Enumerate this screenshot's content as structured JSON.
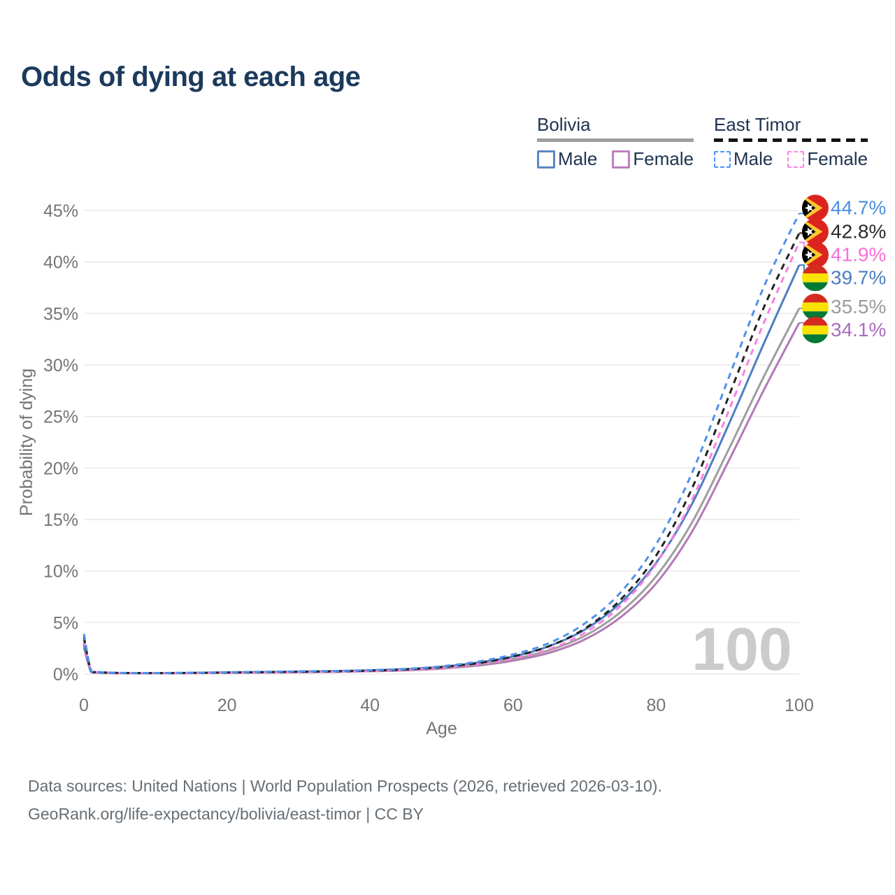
{
  "title": "Odds of dying at each age",
  "watermark": "100",
  "legend": {
    "groups": [
      {
        "label": "Bolivia",
        "line_style": "solid",
        "line_color": "#9e9e9e",
        "items": [
          {
            "label": "Male",
            "color": "#5b87c5",
            "dashed": false
          },
          {
            "label": "Female",
            "color": "#bf7fbf",
            "dashed": false
          }
        ]
      },
      {
        "label": "East Timor",
        "line_style": "dashed",
        "line_color": "#141414",
        "items": [
          {
            "label": "Male",
            "color": "#4d94ff",
            "dashed": true
          },
          {
            "label": "Female",
            "color": "#ff85e8",
            "dashed": true
          }
        ]
      }
    ]
  },
  "footer": {
    "line1": "Data sources: United Nations | World Population Prospects (2026, retrieved 2026-03-10).",
    "line2": "GeoRank.org/life-expectancy/bolivia/east-timor | CC BY"
  },
  "chart_data": {
    "type": "line",
    "title": "Odds of dying at each age",
    "xlabel": "Age",
    "ylabel": "Probability of dying",
    "xlim": [
      0,
      100
    ],
    "ylim": [
      0,
      45
    ],
    "x_ticks": [
      0,
      20,
      40,
      60,
      80,
      100
    ],
    "y_ticks": [
      0,
      5,
      10,
      15,
      20,
      25,
      30,
      35,
      40,
      45
    ],
    "y_tick_suffix": "%",
    "grid": "horizontal",
    "legend_position": "top-right",
    "x": [
      0,
      1,
      2,
      5,
      10,
      15,
      20,
      25,
      30,
      35,
      40,
      45,
      50,
      55,
      60,
      65,
      70,
      75,
      80,
      85,
      90,
      95,
      100
    ],
    "series": [
      {
        "name": "East Timor Male",
        "country": "East Timor",
        "sex": "Male",
        "color": "#4e92ea",
        "dashed": true,
        "end_label": "44.7%",
        "label_color": "#4a8fe0",
        "flag": "east-timor",
        "values": [
          3.9,
          0.35,
          0.2,
          0.12,
          0.1,
          0.13,
          0.18,
          0.22,
          0.26,
          0.3,
          0.38,
          0.5,
          0.75,
          1.2,
          1.9,
          3.0,
          4.9,
          7.9,
          12.6,
          19.5,
          28.5,
          37.5,
          44.7
        ]
      },
      {
        "name": "East Timor Both sexes",
        "country": "East Timor",
        "sex": "Both",
        "color": "#222222",
        "dashed": true,
        "end_label": "42.8%",
        "label_color": "#2a2a2a",
        "flag": "east-timor",
        "values": [
          3.6,
          0.33,
          0.19,
          0.11,
          0.09,
          0.11,
          0.15,
          0.18,
          0.22,
          0.26,
          0.33,
          0.45,
          0.68,
          1.05,
          1.7,
          2.7,
          4.4,
          7.2,
          11.5,
          18.0,
          26.7,
          35.5,
          42.8
        ]
      },
      {
        "name": "East Timor Female",
        "country": "East Timor",
        "sex": "Female",
        "color": "#fa7fe1",
        "dashed": true,
        "end_label": "41.9%",
        "label_color": "#fa6fd8",
        "flag": "east-timor",
        "values": [
          3.3,
          0.3,
          0.18,
          0.1,
          0.08,
          0.09,
          0.12,
          0.15,
          0.18,
          0.22,
          0.28,
          0.4,
          0.6,
          0.95,
          1.5,
          2.4,
          4.0,
          6.6,
          10.7,
          16.9,
          25.3,
          34.0,
          41.9
        ]
      },
      {
        "name": "Bolivia Male",
        "country": "Bolivia",
        "sex": "Male",
        "color": "#4d7ec2",
        "dashed": false,
        "end_label": "39.7%",
        "label_color": "#4d7ec2",
        "flag": "bolivia",
        "values": [
          3.0,
          0.25,
          0.15,
          0.1,
          0.09,
          0.12,
          0.16,
          0.2,
          0.24,
          0.29,
          0.36,
          0.48,
          0.7,
          1.1,
          1.7,
          2.7,
          4.3,
          6.9,
          10.8,
          16.5,
          24.0,
          32.0,
          39.7
        ]
      },
      {
        "name": "Bolivia Both sexes",
        "country": "Bolivia",
        "sex": "Both",
        "color": "#9e9e9e",
        "dashed": false,
        "end_label": "35.5%",
        "label_color": "#9b9b9b",
        "flag": "bolivia",
        "values": [
          2.8,
          0.23,
          0.14,
          0.09,
          0.08,
          0.1,
          0.13,
          0.16,
          0.2,
          0.24,
          0.3,
          0.41,
          0.6,
          0.92,
          1.45,
          2.3,
          3.7,
          6.0,
          9.5,
          14.7,
          21.6,
          28.8,
          35.5
        ]
      },
      {
        "name": "Bolivia Female",
        "country": "Bolivia",
        "sex": "Female",
        "color": "#b27ab5",
        "dashed": false,
        "end_label": "34.1%",
        "label_color": "#aa6cbd",
        "flag": "bolivia",
        "values": [
          2.6,
          0.21,
          0.13,
          0.08,
          0.07,
          0.09,
          0.11,
          0.14,
          0.17,
          0.21,
          0.27,
          0.36,
          0.53,
          0.82,
          1.3,
          2.05,
          3.35,
          5.5,
          8.8,
          13.8,
          20.5,
          27.5,
          34.1
        ]
      }
    ],
    "annotations": [
      {
        "text": "100",
        "role": "current-age-watermark"
      }
    ]
  }
}
